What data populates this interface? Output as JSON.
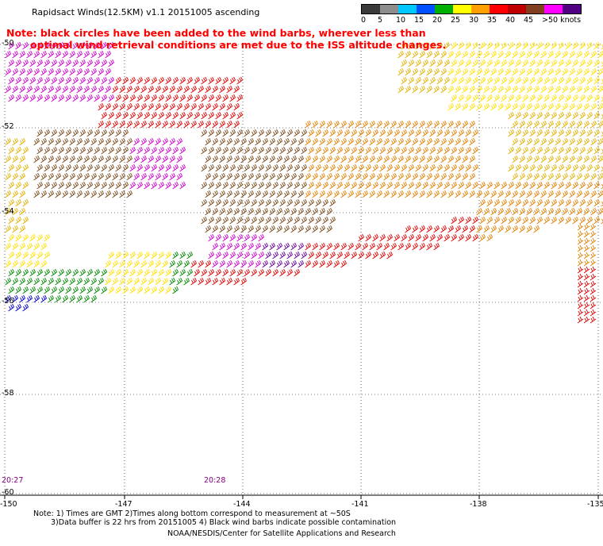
{
  "header": {
    "title": "Rapidsact Winds(12.5KM) v1.1 20151005 ascending",
    "note_line1": "Note: black circles have been added to the wind barbs, wherever less than",
    "note_line2": "optimal wind retrieval conditions are met due to the ISS altitude changes."
  },
  "legend": {
    "unit": "knots",
    "labels": [
      "0",
      "5",
      "10",
      "15",
      "20",
      "25",
      "30",
      "35",
      "40",
      "45",
      ">50 knots"
    ],
    "colors": [
      "#3a3a3a",
      "#8c8c8c",
      "#00c8ff",
      "#0050ff",
      "#00b000",
      "#ffff00",
      "#ffa000",
      "#ff0000",
      "#c00000",
      "#804020",
      "#ff00ff",
      "#500080"
    ]
  },
  "axes": {
    "lon_labels": [
      "-150",
      "-147",
      "-144",
      "-141",
      "-138",
      "-135"
    ],
    "lat_labels": [
      "-50",
      "-52",
      "-54",
      "-56",
      "-58",
      "-60"
    ]
  },
  "times": [
    "20:27",
    "20:28"
  ],
  "footer": {
    "line1": "Note: 1) Times are GMT 2)Times along bottom correspond to measurement at ~50S",
    "line2": "3)Data buffer is 22 hrs from 20151005 4) Black wind barbs indicate possible contamination",
    "line3": "NOAA/NESDIS/Center for Satellite Applications and Research"
  },
  "wind_field_colors": {
    "magenta": "#cc00cc",
    "purple": "#660099",
    "dark_red": "#8b0000",
    "red": "#e00000",
    "brown": "#7a4a1a",
    "orange": "#e08000",
    "gold": "#e0b000",
    "yellow": "#ffe000",
    "green": "#008800",
    "blue": "#0000cc"
  }
}
